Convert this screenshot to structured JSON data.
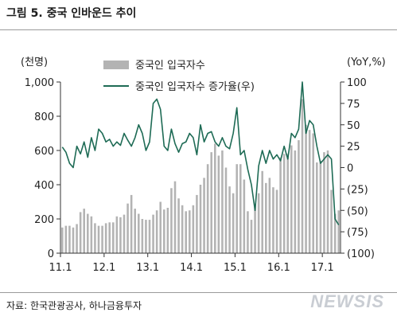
{
  "title": "그림 5. 중국 인바운드 추이",
  "source": "자료: 한국관광공사, 하나금융투자",
  "watermark": "NEWSIS",
  "chart_data": {
    "type": "bar+line",
    "left_unit": "(천명)",
    "right_unit": "(YoY,%)",
    "left_ylim": [
      0,
      1000
    ],
    "right_ylim": [
      -100,
      100
    ],
    "left_ticks": [
      "0",
      "200",
      "400",
      "600",
      "800",
      "1,000"
    ],
    "right_ticks": [
      "(100)",
      "(75)",
      "(50)",
      "(25)",
      "0",
      "25",
      "50",
      "75",
      "100"
    ],
    "x_ticks": [
      "11.1",
      "12.1",
      "13.1",
      "14.1",
      "15.1",
      "16.1",
      "17.1"
    ],
    "legend": {
      "bar": "중국인 입국자수",
      "line": "중국인 입국자수 증가율(우)"
    },
    "colors": {
      "bar": "#b3b3b3",
      "line": "#1e6b55",
      "axis": "#333333"
    },
    "series": [
      {
        "name": "중국인 입국자수",
        "type": "bar",
        "values": [
          150,
          160,
          160,
          150,
          170,
          240,
          260,
          230,
          215,
          175,
          160,
          160,
          175,
          180,
          180,
          215,
          210,
          225,
          290,
          340,
          260,
          230,
          200,
          195,
          195,
          225,
          250,
          300,
          255,
          265,
          380,
          420,
          320,
          280,
          245,
          250,
          280,
          340,
          400,
          440,
          520,
          590,
          640,
          570,
          600,
          500,
          390,
          350,
          520,
          520,
          430,
          245,
          195,
          280,
          350,
          480,
          410,
          440,
          385,
          370,
          560,
          580,
          580,
          630,
          600,
          660,
          900,
          750,
          720,
          700,
          530,
          540,
          590,
          600,
          370,
          230,
          250
        ]
      },
      {
        "name": "중국인 입국자수 증가율(우)",
        "type": "line",
        "values": [
          24,
          18,
          5,
          0,
          25,
          16,
          30,
          12,
          35,
          20,
          45,
          40,
          30,
          33,
          25,
          30,
          26,
          40,
          32,
          25,
          35,
          50,
          40,
          20,
          30,
          75,
          80,
          68,
          25,
          20,
          45,
          28,
          18,
          28,
          30,
          40,
          35,
          15,
          50,
          30,
          40,
          42,
          30,
          25,
          35,
          25,
          22,
          40,
          70,
          15,
          20,
          -2,
          -20,
          -50,
          2,
          20,
          5,
          20,
          10,
          15,
          8,
          25,
          10,
          40,
          35,
          45,
          100,
          40,
          55,
          50,
          25,
          5,
          10,
          15,
          10,
          -60,
          -67
        ]
      }
    ]
  }
}
